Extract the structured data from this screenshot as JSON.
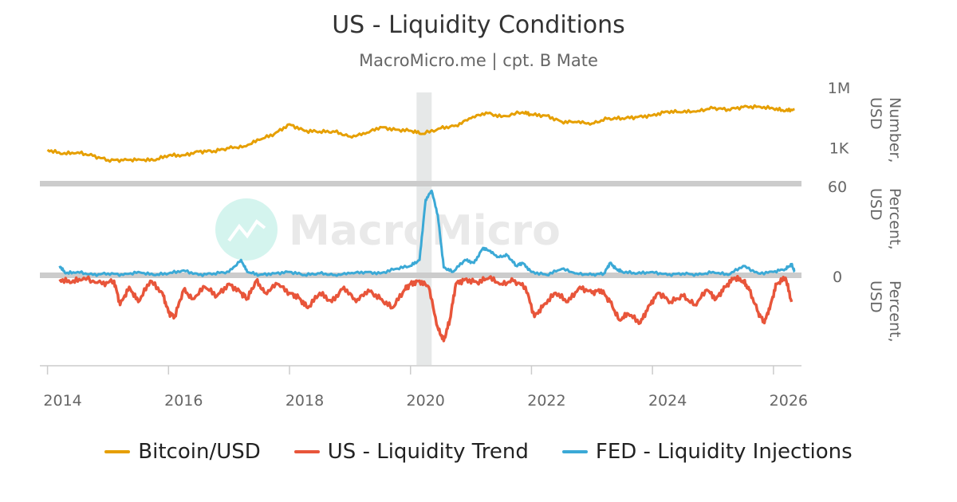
{
  "title": "US - Liquidity Conditions",
  "subtitle": "MacroMicro.me | cpt. B Mate",
  "watermark": "MacroMicro",
  "colors": {
    "bitcoin": "#e69f00",
    "trend": "#e8553a",
    "fed": "#3ba9d6",
    "recession": "#e6e8e8",
    "axis": "#cccccc"
  },
  "chart_data": {
    "type": "line",
    "panels": [
      {
        "name": "top",
        "axis_title": "Number, USD",
        "scale": "log",
        "ylim": [
          10,
          1000000
        ],
        "ticks": [
          {
            "value": 1000000,
            "label": "1M"
          },
          {
            "value": 1000,
            "label": "1K"
          }
        ],
        "series": [
          {
            "name": "Bitcoin/USD",
            "color": "#e69f00",
            "points": [
              [
                2014.0,
                800
              ],
              [
                2014.25,
                500
              ],
              [
                2014.5,
                600
              ],
              [
                2014.75,
                400
              ],
              [
                2015.0,
                250
              ],
              [
                2015.25,
                240
              ],
              [
                2015.5,
                270
              ],
              [
                2015.75,
                240
              ],
              [
                2016.0,
                420
              ],
              [
                2016.25,
                430
              ],
              [
                2016.5,
                650
              ],
              [
                2016.75,
                700
              ],
              [
                2017.0,
                960
              ],
              [
                2017.25,
                1200
              ],
              [
                2017.5,
                2500
              ],
              [
                2017.75,
                5000
              ],
              [
                2018.0,
                15000
              ],
              [
                2018.25,
                7000
              ],
              [
                2018.5,
                6500
              ],
              [
                2018.75,
                6300
              ],
              [
                2019.0,
                3700
              ],
              [
                2019.25,
                5000
              ],
              [
                2019.5,
                11000
              ],
              [
                2019.75,
                8000
              ],
              [
                2020.0,
                7200
              ],
              [
                2020.2,
                5000
              ],
              [
                2020.5,
                9500
              ],
              [
                2020.75,
                13000
              ],
              [
                2021.0,
                30000
              ],
              [
                2021.25,
                58000
              ],
              [
                2021.5,
                35000
              ],
              [
                2021.85,
                60000
              ],
              [
                2022.0,
                45000
              ],
              [
                2022.25,
                40000
              ],
              [
                2022.5,
                20000
              ],
              [
                2022.75,
                19000
              ],
              [
                2023.0,
                16500
              ],
              [
                2023.25,
                28000
              ],
              [
                2023.5,
                30000
              ],
              [
                2023.75,
                34000
              ],
              [
                2024.0,
                42000
              ],
              [
                2024.25,
                65000
              ],
              [
                2024.5,
                60000
              ],
              [
                2024.75,
                70000
              ],
              [
                2025.0,
                95000
              ],
              [
                2025.25,
                82000
              ],
              [
                2025.5,
                108000
              ],
              [
                2025.75,
                115000
              ],
              [
                2026.0,
                90000
              ],
              [
                2026.2,
                70000
              ],
              [
                2026.35,
                85000
              ]
            ]
          }
        ]
      },
      {
        "name": "bottom",
        "axis_title": "Percent, USD",
        "scale": "linear",
        "ylim": [
          -60,
          60
        ],
        "ticks": [
          {
            "value": 60,
            "label": "60"
          },
          {
            "value": 0,
            "label": "0"
          }
        ],
        "series": [
          {
            "name": "FED - Liquidity Injections",
            "color": "#3ba9d6",
            "points": [
              [
                2014.2,
                6
              ],
              [
                2014.3,
                1
              ],
              [
                2014.5,
                2
              ],
              [
                2014.75,
                0
              ],
              [
                2015.0,
                1
              ],
              [
                2015.25,
                0
              ],
              [
                2015.5,
                2
              ],
              [
                2015.75,
                0
              ],
              [
                2016.0,
                1
              ],
              [
                2016.25,
                3
              ],
              [
                2016.5,
                0
              ],
              [
                2016.75,
                1
              ],
              [
                2017.0,
                2
              ],
              [
                2017.2,
                10
              ],
              [
                2017.3,
                2
              ],
              [
                2017.5,
                0
              ],
              [
                2017.75,
                1
              ],
              [
                2018.0,
                2
              ],
              [
                2018.25,
                0
              ],
              [
                2018.5,
                1
              ],
              [
                2018.75,
                0
              ],
              [
                2019.0,
                1
              ],
              [
                2019.25,
                2
              ],
              [
                2019.5,
                1
              ],
              [
                2019.75,
                4
              ],
              [
                2020.0,
                6
              ],
              [
                2020.15,
                10
              ],
              [
                2020.25,
                50
              ],
              [
                2020.35,
                56
              ],
              [
                2020.45,
                40
              ],
              [
                2020.55,
                5
              ],
              [
                2020.7,
                2
              ],
              [
                2020.9,
                10
              ],
              [
                2021.05,
                8
              ],
              [
                2021.2,
                18
              ],
              [
                2021.3,
                16
              ],
              [
                2021.45,
                12
              ],
              [
                2021.6,
                13
              ],
              [
                2021.75,
                6
              ],
              [
                2021.85,
                8
              ],
              [
                2022.0,
                2
              ],
              [
                2022.25,
                0
              ],
              [
                2022.5,
                4
              ],
              [
                2022.75,
                1
              ],
              [
                2023.0,
                0
              ],
              [
                2023.2,
                1
              ],
              [
                2023.3,
                8
              ],
              [
                2023.4,
                4
              ],
              [
                2023.5,
                2
              ],
              [
                2023.75,
                1
              ],
              [
                2024.0,
                2
              ],
              [
                2024.25,
                0
              ],
              [
                2024.5,
                1
              ],
              [
                2024.75,
                0
              ],
              [
                2025.0,
                2
              ],
              [
                2025.25,
                0
              ],
              [
                2025.5,
                6
              ],
              [
                2025.75,
                1
              ],
              [
                2026.0,
                2
              ],
              [
                2026.2,
                4
              ],
              [
                2026.3,
                7
              ],
              [
                2026.35,
                2
              ]
            ]
          },
          {
            "name": "US - Liquidity Trend",
            "color": "#e8553a",
            "points": [
              [
                2014.2,
                -3
              ],
              [
                2014.4,
                -5
              ],
              [
                2014.6,
                -2
              ],
              [
                2014.9,
                -6
              ],
              [
                2015.1,
                -4
              ],
              [
                2015.2,
                -20
              ],
              [
                2015.35,
                -8
              ],
              [
                2015.5,
                -18
              ],
              [
                2015.7,
                -4
              ],
              [
                2015.9,
                -12
              ],
              [
                2016.0,
                -25
              ],
              [
                2016.1,
                -28
              ],
              [
                2016.25,
                -10
              ],
              [
                2016.4,
                -16
              ],
              [
                2016.6,
                -8
              ],
              [
                2016.8,
                -14
              ],
              [
                2017.0,
                -6
              ],
              [
                2017.2,
                -12
              ],
              [
                2017.3,
                -16
              ],
              [
                2017.45,
                -4
              ],
              [
                2017.6,
                -12
              ],
              [
                2017.8,
                -6
              ],
              [
                2018.0,
                -12
              ],
              [
                2018.15,
                -15
              ],
              [
                2018.3,
                -22
              ],
              [
                2018.5,
                -12
              ],
              [
                2018.7,
                -18
              ],
              [
                2018.9,
                -8
              ],
              [
                2019.1,
                -18
              ],
              [
                2019.3,
                -10
              ],
              [
                2019.5,
                -16
              ],
              [
                2019.7,
                -22
              ],
              [
                2019.9,
                -10
              ],
              [
                2020.0,
                -6
              ],
              [
                2020.15,
                -4
              ],
              [
                2020.3,
                -8
              ],
              [
                2020.45,
                -35
              ],
              [
                2020.55,
                -44
              ],
              [
                2020.65,
                -30
              ],
              [
                2020.75,
                -6
              ],
              [
                2020.9,
                -3
              ],
              [
                2021.1,
                -5
              ],
              [
                2021.3,
                -2
              ],
              [
                2021.5,
                -6
              ],
              [
                2021.7,
                -4
              ],
              [
                2021.9,
                -8
              ],
              [
                2022.05,
                -28
              ],
              [
                2022.2,
                -20
              ],
              [
                2022.4,
                -12
              ],
              [
                2022.6,
                -18
              ],
              [
                2022.8,
                -8
              ],
              [
                2023.0,
                -12
              ],
              [
                2023.15,
                -10
              ],
              [
                2023.3,
                -18
              ],
              [
                2023.45,
                -30
              ],
              [
                2023.6,
                -26
              ],
              [
                2023.8,
                -32
              ],
              [
                2023.95,
                -20
              ],
              [
                2024.1,
                -12
              ],
              [
                2024.3,
                -18
              ],
              [
                2024.5,
                -14
              ],
              [
                2024.7,
                -20
              ],
              [
                2024.9,
                -10
              ],
              [
                2025.05,
                -16
              ],
              [
                2025.2,
                -8
              ],
              [
                2025.35,
                -2
              ],
              [
                2025.5,
                -4
              ],
              [
                2025.6,
                -10
              ],
              [
                2025.75,
                -25
              ],
              [
                2025.85,
                -32
              ],
              [
                2025.95,
                -20
              ],
              [
                2026.05,
                -6
              ],
              [
                2026.2,
                -2
              ],
              [
                2026.3,
                -18
              ]
            ]
          }
        ]
      }
    ],
    "x_ticks": [
      "2014",
      "2016",
      "2018",
      "2020",
      "2022",
      "2024",
      "2026"
    ],
    "xlim": [
      2013.9,
      2026.45
    ],
    "recession_band": [
      2020.1,
      2020.35
    ],
    "grid": false,
    "legend": "bottom"
  }
}
